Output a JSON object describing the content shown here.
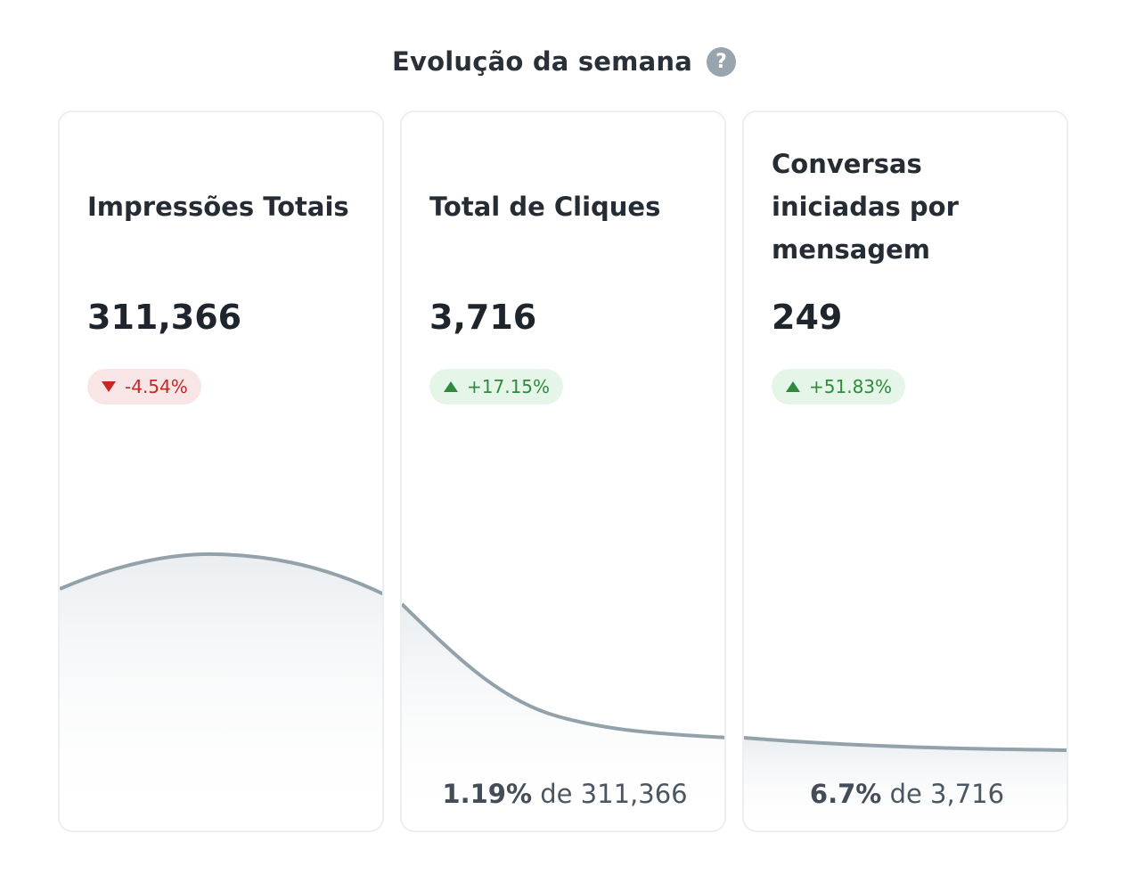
{
  "header": {
    "title": "Evolução da semana",
    "help_icon": "question-circle-icon"
  },
  "cards": [
    {
      "title": "Impressões Totais",
      "value": "311,366",
      "change": "-4.54%",
      "trend": "down",
      "footer": null
    },
    {
      "title": "Total de Cliques",
      "value": "3,716",
      "change": "+17.15%",
      "trend": "up",
      "footer": {
        "percent": "1.19%",
        "text": "de 311,366"
      }
    },
    {
      "title": "Conversas iniciadas por mensagem",
      "value": "249",
      "change": "+51.83%",
      "trend": "up",
      "footer": {
        "percent": "6.7%",
        "text": "de 3,716"
      }
    }
  ],
  "colors": {
    "line": "#93a1ab",
    "negative": "#c62828",
    "positive": "#2e8b3e"
  }
}
